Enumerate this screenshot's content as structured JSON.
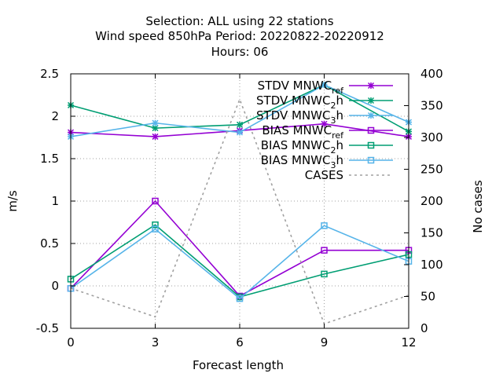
{
  "chart_data": {
    "type": "line",
    "title_lines": [
      "Selection: ALL using    22 stations",
      "Wind speed 850hPa   Period: 20220822-20220912",
      "Hours:  06"
    ],
    "xlabel": "Forecast length",
    "ylabel": "m/s",
    "y2label": "No cases",
    "x": [
      0,
      3,
      6,
      9,
      12
    ],
    "xlim": [
      0,
      12
    ],
    "xticks": [
      "0",
      "3",
      "6",
      "9",
      "12"
    ],
    "ylim": [
      -0.5,
      2.5
    ],
    "yticks": [
      "-0.5",
      "0",
      "0.5",
      "1",
      "1.5",
      "2",
      "2.5"
    ],
    "y2lim": [
      0,
      400
    ],
    "y2ticks": [
      "0",
      "50",
      "100",
      "150",
      "200",
      "250",
      "300",
      "350",
      "400"
    ],
    "grid": true,
    "legend_position": "top-right",
    "series": [
      {
        "name": "STDV MNWC_ref",
        "label_main": "STDV MNWC",
        "label_sub": "ref",
        "axis": "y",
        "color": "#9400d3",
        "marker": "star",
        "dash": "",
        "values": [
          1.81,
          1.76,
          1.83,
          1.91,
          1.76
        ]
      },
      {
        "name": "STDV MNWC_2h",
        "label_main": "STDV MNWC",
        "label_sub": "2",
        "label_tail": "h",
        "axis": "y",
        "color": "#009e73",
        "marker": "star",
        "dash": "",
        "values": [
          2.13,
          1.86,
          1.9,
          2.37,
          1.82
        ]
      },
      {
        "name": "STDV MNWC_3h",
        "label_main": "STDV MNWC",
        "label_sub": "3",
        "label_tail": "h",
        "axis": "y",
        "color": "#56b4e9",
        "marker": "star",
        "dash": "",
        "values": [
          1.76,
          1.92,
          1.81,
          2.37,
          1.93
        ]
      },
      {
        "name": "BIAS MNWC_ref",
        "label_main": "BIAS MNWC",
        "label_sub": "ref",
        "axis": "y",
        "color": "#9400d3",
        "marker": "square",
        "dash": "",
        "values": [
          -0.03,
          1.0,
          -0.12,
          0.42,
          0.42
        ]
      },
      {
        "name": "BIAS MNWC_2h",
        "label_main": "BIAS MNWC",
        "label_sub": "2",
        "label_tail": "h",
        "axis": "y",
        "color": "#009e73",
        "marker": "square",
        "dash": "",
        "values": [
          0.08,
          0.72,
          -0.13,
          0.14,
          0.37
        ]
      },
      {
        "name": "BIAS MNWC_3h",
        "label_main": "BIAS MNWC",
        "label_sub": "3",
        "label_tail": "h",
        "axis": "y",
        "color": "#56b4e9",
        "marker": "square",
        "dash": "",
        "values": [
          -0.03,
          0.67,
          -0.15,
          0.71,
          0.29
        ]
      },
      {
        "name": "CASES",
        "label_main": "CASES",
        "axis": "y2",
        "color": "#a0a0a0",
        "marker": "none",
        "dash": "3,4",
        "values": [
          63,
          18,
          360,
          7,
          52
        ]
      }
    ]
  }
}
